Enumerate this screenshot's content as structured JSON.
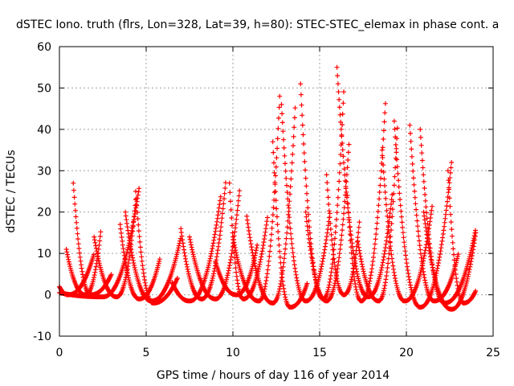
{
  "chart_data": {
    "type": "scatter",
    "title": "dSTEC Iono. truth (flrs, Lon=328, Lat=39, h=80): STEC-STEC_elemax in phase cont. a",
    "xlabel": "GPS time / hours of day 116 of year 2014",
    "ylabel": "dSTEC  / TECUs",
    "xlim": [
      0,
      25
    ],
    "ylim": [
      -10,
      60
    ],
    "xticks": [
      0,
      5,
      10,
      15,
      20,
      25
    ],
    "yticks": [
      -10,
      0,
      10,
      20,
      30,
      40,
      50,
      60
    ],
    "grid": true,
    "marker": "+",
    "color": "#ff0000",
    "arcs": [
      {
        "start": 0.0,
        "min_t": 0.5,
        "end": 2.0,
        "min_v": 0.0,
        "start_v": 2.0,
        "end_v": 10.0
      },
      {
        "start": 0.4,
        "min_t": 1.5,
        "end": 2.4,
        "min_v": 0.0,
        "start_v": 11.0,
        "end_v": 16.0
      },
      {
        "start": 0.8,
        "min_t": 1.8,
        "end": 3.0,
        "min_v": 0.0,
        "start_v": 27.0,
        "end_v": 5.0
      },
      {
        "start": 0.0,
        "min_t": 2.5,
        "end": 4.6,
        "min_v": -0.5,
        "start_v": 0.5,
        "end_v": 26.0
      },
      {
        "start": 2.0,
        "min_t": 3.3,
        "end": 4.4,
        "min_v": -0.5,
        "start_v": 14.0,
        "end_v": 23.0
      },
      {
        "start": 3.8,
        "min_t": 5.3,
        "end": 7.0,
        "min_v": -1.5,
        "start_v": 20.0,
        "end_v": 14.0
      },
      {
        "start": 4.4,
        "min_t": 5.4,
        "end": 6.8,
        "min_v": -2.0,
        "start_v": 25.0,
        "end_v": 4.0
      },
      {
        "start": 3.5,
        "min_t": 4.6,
        "end": 5.8,
        "min_v": -1.0,
        "start_v": 17.0,
        "end_v": 9.0
      },
      {
        "start": 6.5,
        "min_t": 7.5,
        "end": 9.3,
        "min_v": -1.5,
        "start_v": 3.0,
        "end_v": 24.0
      },
      {
        "start": 7.0,
        "min_t": 8.2,
        "end": 9.6,
        "min_v": -1.0,
        "start_v": 16.0,
        "end_v": 28.0
      },
      {
        "start": 7.5,
        "min_t": 9.0,
        "end": 10.4,
        "min_v": -1.0,
        "start_v": 14.0,
        "end_v": 26.0
      },
      {
        "start": 9.8,
        "min_t": 10.6,
        "end": 12.0,
        "min_v": -1.0,
        "start_v": 27.0,
        "end_v": 19.0
      },
      {
        "start": 9.0,
        "min_t": 10.2,
        "end": 11.4,
        "min_v": 0.0,
        "start_v": 8.0,
        "end_v": 12.0
      },
      {
        "start": 10.0,
        "min_t": 11.5,
        "end": 12.7,
        "min_v": -1.5,
        "start_v": 14.0,
        "end_v": 48.0
      },
      {
        "start": 10.8,
        "min_t": 12.3,
        "end": 13.6,
        "min_v": -2.0,
        "start_v": 19.0,
        "end_v": 46.0
      },
      {
        "start": 12.8,
        "min_t": 14.2,
        "end": 15.6,
        "min_v": -1.5,
        "start_v": 46.0,
        "end_v": 20.0
      },
      {
        "start": 12.3,
        "min_t": 13.3,
        "end": 14.3,
        "min_v": -3.0,
        "start_v": 37.0,
        "end_v": 3.0
      },
      {
        "start": 13.9,
        "min_t": 15.2,
        "end": 16.4,
        "min_v": -1.0,
        "start_v": 51.0,
        "end_v": 50.0
      },
      {
        "start": 14.2,
        "min_t": 15.4,
        "end": 16.7,
        "min_v": -1.5,
        "start_v": 20.0,
        "end_v": 37.0
      },
      {
        "start": 16.0,
        "min_t": 17.8,
        "end": 19.2,
        "min_v": -0.5,
        "start_v": 55.0,
        "end_v": 25.0
      },
      {
        "start": 15.4,
        "min_t": 16.4,
        "end": 17.3,
        "min_v": 0.0,
        "start_v": 29.0,
        "end_v": 18.0
      },
      {
        "start": 16.6,
        "min_t": 17.4,
        "end": 18.8,
        "min_v": -1.5,
        "start_v": 24.0,
        "end_v": 47.0
      },
      {
        "start": 17.2,
        "min_t": 18.4,
        "end": 19.5,
        "min_v": -1.5,
        "start_v": 13.0,
        "end_v": 42.0
      },
      {
        "start": 18.6,
        "min_t": 19.9,
        "end": 21.5,
        "min_v": -1.5,
        "start_v": 35.0,
        "end_v": 22.0
      },
      {
        "start": 19.3,
        "min_t": 20.8,
        "end": 22.6,
        "min_v": -3.0,
        "start_v": 42.0,
        "end_v": 32.0
      },
      {
        "start": 20.2,
        "min_t": 21.6,
        "end": 23.0,
        "min_v": -1.5,
        "start_v": 41.0,
        "end_v": 10.0
      },
      {
        "start": 20.8,
        "min_t": 22.2,
        "end": 24.0,
        "min_v": -2.0,
        "start_v": 40.0,
        "end_v": 16.0
      },
      {
        "start": 22.4,
        "min_t": 23.3,
        "end": 24.0,
        "min_v": -2.0,
        "start_v": 30.0,
        "end_v": 1.0
      },
      {
        "start": 21.0,
        "min_t": 22.6,
        "end": 24.0,
        "min_v": -3.5,
        "start_v": 20.0,
        "end_v": 15.0
      }
    ]
  }
}
